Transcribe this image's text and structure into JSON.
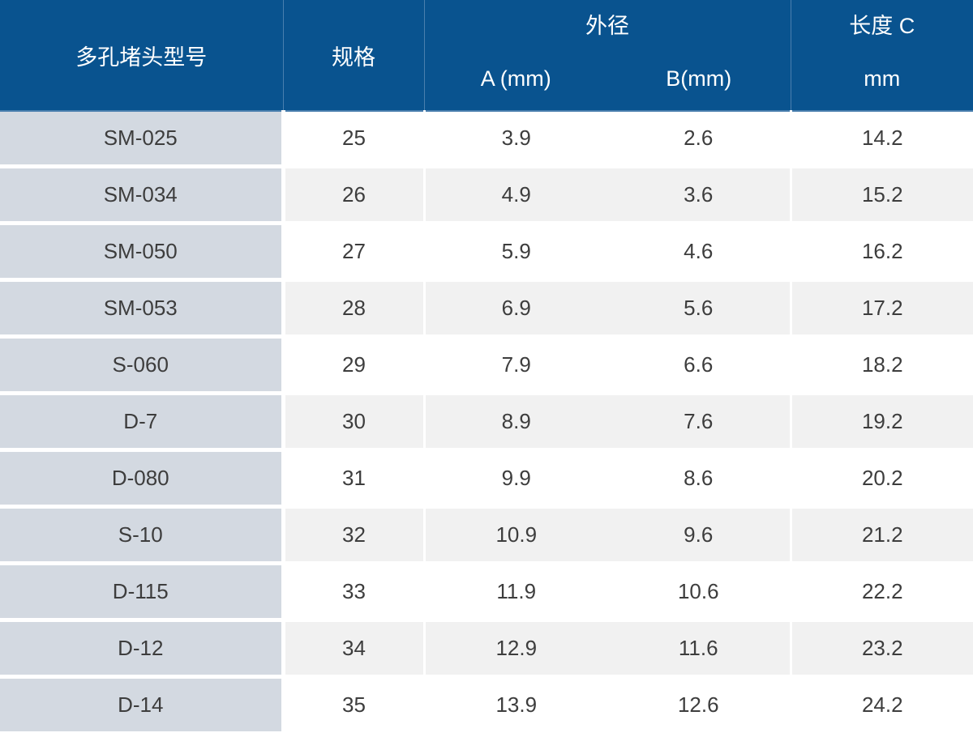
{
  "table": {
    "header": {
      "model": "多孔堵头型号",
      "spec": "规格",
      "outer_diameter": "外径",
      "a_mm": "A (mm)",
      "b_mm": "B(mm)",
      "length_c": "长度 C",
      "length_c_unit": "mm"
    },
    "rows": [
      {
        "model": "SM-025",
        "spec": "25",
        "a": "3.9",
        "b": "2.6",
        "c": "14.2"
      },
      {
        "model": "SM-034",
        "spec": "26",
        "a": "4.9",
        "b": "3.6",
        "c": "15.2"
      },
      {
        "model": "SM-050",
        "spec": "27",
        "a": "5.9",
        "b": "4.6",
        "c": "16.2"
      },
      {
        "model": "SM-053",
        "spec": "28",
        "a": "6.9",
        "b": "5.6",
        "c": "17.2"
      },
      {
        "model": "S-060",
        "spec": "29",
        "a": "7.9",
        "b": "6.6",
        "c": "18.2"
      },
      {
        "model": "D-7",
        "spec": "30",
        "a": "8.9",
        "b": "7.6",
        "c": "19.2"
      },
      {
        "model": "D-080",
        "spec": "31",
        "a": "9.9",
        "b": "8.6",
        "c": "20.2"
      },
      {
        "model": "S-10",
        "spec": "32",
        "a": "10.9",
        "b": "9.6",
        "c": "21.2"
      },
      {
        "model": "D-115",
        "spec": "33",
        "a": "11.9",
        "b": "10.6",
        "c": "22.2"
      },
      {
        "model": "D-12",
        "spec": "34",
        "a": "12.9",
        "b": "11.6",
        "c": "23.2"
      },
      {
        "model": "D-14",
        "spec": "35",
        "a": "13.9",
        "b": "12.6",
        "c": "24.2"
      }
    ]
  },
  "colors": {
    "header_bg": "#09538f",
    "header_text": "#ffffff",
    "header_divider": "#4a7fae",
    "model_column_bg": "#d3d9e1",
    "stripe_row_bg": "#f1f1f1",
    "body_text": "#3d3d3d",
    "grid_gap": "#ffffff"
  }
}
